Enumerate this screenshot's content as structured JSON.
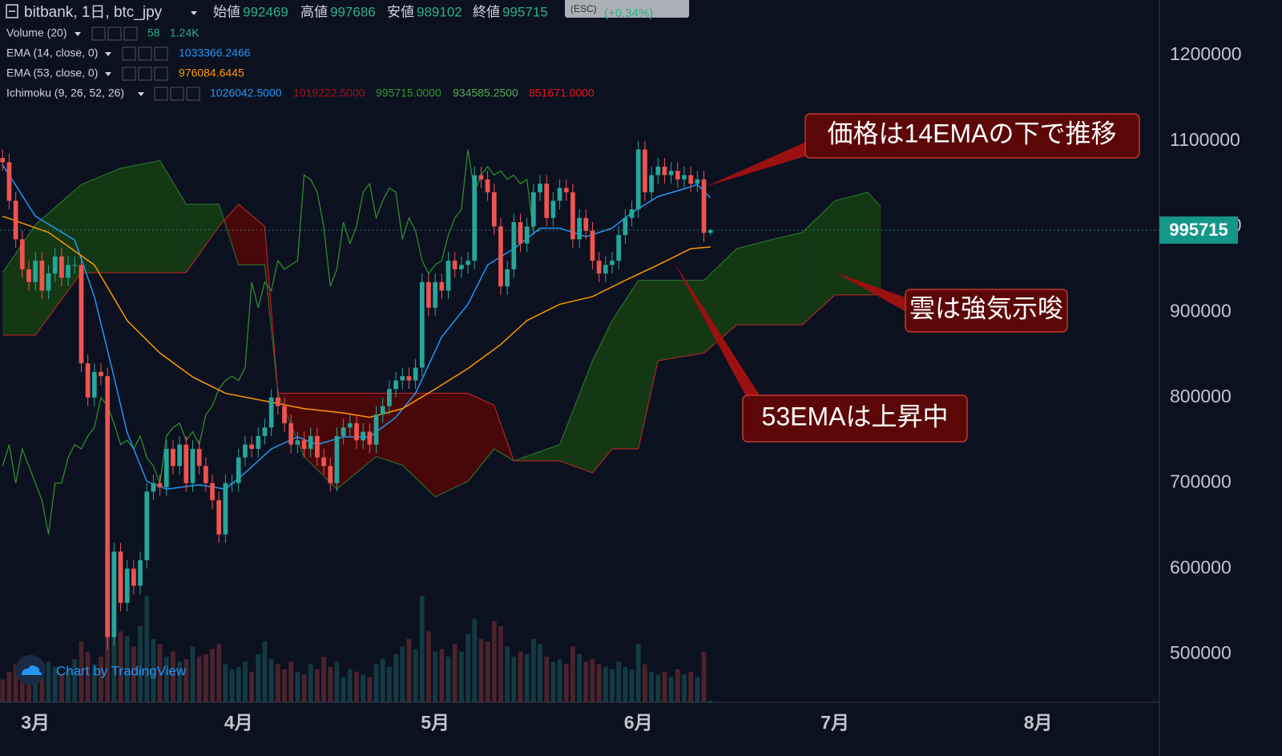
{
  "header": {
    "symbol": "bitbank, 1日, btc_jpy",
    "ohlc_labels": [
      "始値",
      "高値",
      "安値",
      "終値"
    ],
    "esc": "(ESC)",
    "change": "(+0.34%)"
  },
  "watermark": "Chart by TradingView",
  "annotations": [
    "価格は14EMAの下で推移",
    "雲は強気示唆",
    "53EMAは上昇中"
  ],
  "chart_data": {
    "type": "candlestick",
    "xlim": [
      -5.4,
      171.5
    ],
    "ylim": [
      443800,
      1264700
    ],
    "xticks": [
      {
        "value": 0,
        "label": "3月"
      },
      {
        "value": 31,
        "label": "4月"
      },
      {
        "value": 61,
        "label": "5月"
      },
      {
        "value": 92,
        "label": "6月"
      },
      {
        "value": 122,
        "label": "7月"
      },
      {
        "value": 153,
        "label": "8月"
      }
    ],
    "yticks": [
      500000,
      600000,
      700000,
      800000,
      900000,
      1000000,
      1100000,
      1200000
    ],
    "up_color": "#26a69a",
    "down_color": "#ef5350",
    "candles": {
      "x": [
        -5,
        -4,
        -3,
        -2,
        -1,
        0,
        1,
        2,
        3,
        4,
        5,
        6,
        7,
        8,
        9,
        10,
        11,
        12,
        13,
        14,
        15,
        16,
        17,
        18,
        19,
        20,
        21,
        22,
        23,
        24,
        25,
        26,
        27,
        28,
        29,
        30,
        31,
        32,
        33,
        34,
        35,
        36,
        37,
        38,
        39,
        40,
        41,
        42,
        43,
        44,
        45,
        46,
        47,
        48,
        49,
        50,
        51,
        52,
        53,
        54,
        55,
        56,
        57,
        58,
        59,
        60,
        61,
        62,
        63,
        64,
        65,
        66,
        67,
        68,
        69,
        70,
        71,
        72,
        73,
        74,
        75,
        76,
        77,
        78,
        79,
        80,
        81,
        82,
        83,
        84,
        85,
        86,
        87,
        88,
        89,
        90,
        91,
        92,
        93,
        94,
        95,
        96,
        97,
        98,
        99,
        100,
        101,
        102,
        103
      ],
      "open": [
        1080000,
        1075000,
        1030000,
        985000,
        950000,
        935000,
        960000,
        925000,
        945000,
        965000,
        940000,
        955000,
        955000,
        840000,
        800000,
        830000,
        825000,
        520000,
        620000,
        560000,
        600000,
        580000,
        610000,
        690000,
        700000,
        695000,
        740000,
        720000,
        745000,
        700000,
        740000,
        720000,
        700000,
        680000,
        640000,
        700000,
        700000,
        730000,
        745000,
        740000,
        755000,
        765000,
        800000,
        790000,
        770000,
        745000,
        750000,
        740000,
        755000,
        730000,
        720000,
        700000,
        755000,
        765000,
        770000,
        750000,
        760000,
        745000,
        780000,
        790000,
        810000,
        820000,
        825000,
        820000,
        835000,
        935000,
        905000,
        935000,
        925000,
        960000,
        950000,
        955000,
        960000,
        1060000,
        1055000,
        1040000,
        1000000,
        930000,
        950000,
        1005000,
        980000,
        1000000,
        1040000,
        1050000,
        1010000,
        1030000,
        1045000,
        1040000,
        985000,
        1010000,
        995000,
        960000,
        945000,
        955000,
        960000,
        990000,
        1010000,
        1020000,
        1090000,
        1040000,
        1060000,
        1070000,
        1060000,
        1065000,
        1055000,
        1060000,
        1050000,
        1055000,
        992469
      ],
      "high": [
        1090000,
        1085000,
        1040000,
        995000,
        960000,
        970000,
        970000,
        955000,
        975000,
        975000,
        965000,
        965000,
        965000,
        850000,
        840000,
        840000,
        835000,
        630000,
        630000,
        610000,
        610000,
        620000,
        700000,
        710000,
        710000,
        750000,
        750000,
        755000,
        755000,
        750000,
        750000,
        730000,
        710000,
        690000,
        710000,
        710000,
        740000,
        755000,
        755000,
        765000,
        775000,
        810000,
        810000,
        800000,
        780000,
        760000,
        760000,
        765000,
        765000,
        740000,
        730000,
        765000,
        775000,
        780000,
        780000,
        770000,
        770000,
        790000,
        800000,
        820000,
        830000,
        835000,
        835000,
        845000,
        945000,
        945000,
        945000,
        945000,
        970000,
        970000,
        965000,
        970000,
        1070000,
        1070000,
        1065000,
        1050000,
        1010000,
        960000,
        1015000,
        1015000,
        1010000,
        1050000,
        1060000,
        1060000,
        1040000,
        1055000,
        1055000,
        1050000,
        1020000,
        1020000,
        1005000,
        970000,
        965000,
        970000,
        1000000,
        1020000,
        1030000,
        1100000,
        1100000,
        1070000,
        1080000,
        1080000,
        1075000,
        1075000,
        1070000,
        1070000,
        1065000,
        1065000,
        997686
      ],
      "low": [
        1065000,
        1020000,
        975000,
        940000,
        925000,
        925000,
        915000,
        915000,
        935000,
        930000,
        930000,
        945000,
        830000,
        790000,
        790000,
        815000,
        505000,
        510000,
        550000,
        550000,
        570000,
        570000,
        600000,
        680000,
        685000,
        685000,
        710000,
        710000,
        690000,
        690000,
        710000,
        690000,
        670000,
        630000,
        630000,
        690000,
        690000,
        720000,
        730000,
        730000,
        745000,
        755000,
        780000,
        760000,
        735000,
        735000,
        730000,
        730000,
        720000,
        710000,
        690000,
        690000,
        745000,
        755000,
        740000,
        740000,
        735000,
        735000,
        770000,
        780000,
        800000,
        810000,
        810000,
        810000,
        825000,
        895000,
        895000,
        915000,
        915000,
        940000,
        940000,
        945000,
        950000,
        1045000,
        1030000,
        990000,
        920000,
        920000,
        940000,
        970000,
        970000,
        990000,
        1030000,
        1000000,
        1000000,
        1020000,
        1030000,
        975000,
        975000,
        985000,
        950000,
        935000,
        935000,
        945000,
        950000,
        980000,
        1000000,
        1010000,
        1030000,
        1030000,
        1050000,
        1050000,
        1050000,
        1045000,
        1045000,
        1040000,
        1040000,
        982000,
        989102
      ],
      "close": [
        1075000,
        1030000,
        985000,
        950000,
        935000,
        960000,
        925000,
        945000,
        965000,
        940000,
        955000,
        955000,
        840000,
        800000,
        830000,
        825000,
        520000,
        620000,
        560000,
        600000,
        580000,
        610000,
        690000,
        700000,
        695000,
        740000,
        720000,
        745000,
        700000,
        740000,
        720000,
        700000,
        680000,
        640000,
        700000,
        700000,
        730000,
        745000,
        740000,
        755000,
        765000,
        800000,
        790000,
        770000,
        745000,
        750000,
        740000,
        755000,
        730000,
        720000,
        700000,
        755000,
        765000,
        770000,
        750000,
        760000,
        745000,
        780000,
        790000,
        810000,
        820000,
        825000,
        820000,
        835000,
        935000,
        905000,
        935000,
        925000,
        960000,
        950000,
        955000,
        960000,
        1060000,
        1055000,
        1040000,
        1000000,
        930000,
        950000,
        1005000,
        980000,
        1000000,
        1040000,
        1050000,
        1010000,
        1030000,
        1045000,
        1040000,
        985000,
        1010000,
        995000,
        960000,
        945000,
        955000,
        960000,
        990000,
        1010000,
        1020000,
        1090000,
        1040000,
        1060000,
        1070000,
        1060000,
        1065000,
        1055000,
        1060000,
        1050000,
        1055000,
        992469,
        995715
      ]
    },
    "volume": {
      "name": "Volume (20)",
      "ma_label": "1.24K",
      "ylim": [
        0,
        4300
      ],
      "values": [
        900,
        1200,
        1500,
        1100,
        1300,
        1000,
        1200,
        1600,
        1400,
        1100,
        1300,
        1700,
        2400,
        2000,
        1500,
        1800,
        3800,
        3500,
        2800,
        2600,
        2200,
        3000,
        4200,
        2500,
        2300,
        1800,
        2000,
        1600,
        1700,
        2200,
        1800,
        1900,
        2100,
        2300,
        1500,
        1300,
        1400,
        1600,
        1200,
        1900,
        2400,
        1700,
        1500,
        1300,
        1600,
        1200,
        1100,
        1500,
        1300,
        1800,
        1400,
        1600,
        1000,
        1300,
        1200,
        1100,
        1000,
        1500,
        1700,
        1400,
        1900,
        2200,
        2500,
        2100,
        4200,
        2800,
        2000,
        2100,
        1800,
        2300,
        2000,
        2700,
        3300,
        2500,
        2400,
        3200,
        3000,
        2200,
        1800,
        2000,
        1900,
        2500,
        2300,
        1800,
        1600,
        1700,
        1500,
        2200,
        1900,
        1600,
        1700,
        1500,
        1400,
        1300,
        1600,
        1400,
        1300,
        2300,
        1500,
        1200,
        1100,
        1200,
        1000,
        1300,
        1100,
        1200,
        1000,
        2000,
        58
      ]
    },
    "series": [
      {
        "name": "EMA (14, close, 0)",
        "color": "#2196f3",
        "last_label": "1033366.2466",
        "x": [
          -5,
          0,
          6,
          9,
          12,
          14,
          17,
          20,
          25,
          29,
          32,
          36,
          40,
          43,
          47,
          51,
          55,
          58,
          62,
          66,
          69,
          73,
          77,
          80,
          84,
          88,
          91,
          95,
          99,
          101,
          103
        ],
        "values": [
          1072000,
          1012000,
          984000,
          918000,
          824000,
          759000,
          702000,
          693000,
          698000,
          693000,
          712000,
          740000,
          754000,
          745000,
          754000,
          754000,
          777000,
          805000,
          871000,
          909000,
          955000,
          974000,
          998000,
          998000,
          988000,
          998000,
          1016000,
          1035000,
          1044000,
          1049000,
          1033366
        ]
      },
      {
        "name": "EMA (53, close, 0)",
        "color": "#ff9800",
        "last_label": "976084.6445",
        "x": [
          -5,
          2,
          9,
          14,
          19,
          24,
          29,
          35,
          41,
          47,
          51,
          56,
          61,
          66,
          71,
          75,
          80,
          85,
          90,
          95,
          100,
          103
        ],
        "values": [
          1012000,
          993000,
          955000,
          890000,
          852000,
          824000,
          805000,
          796000,
          787000,
          782000,
          777000,
          787000,
          810000,
          834000,
          862000,
          890000,
          909000,
          918000,
          937000,
          955000,
          974000,
          976085
        ]
      }
    ],
    "ichimoku": {
      "name": "Ichimoku (9, 26, 52, 26)",
      "value_labels": [
        "1026042.5000",
        "1019222.5000",
        "995715.0000",
        "934585.2500",
        "851671.0000"
      ],
      "colors": [
        "#2196f3",
        "#a11414",
        "#2e9a2e",
        "#4caf50",
        "#e8141e"
      ],
      "lagging": {
        "color": "#2e8b2e",
        "x": [
          -5,
          -4,
          -3,
          -2,
          -1,
          0,
          1,
          2,
          3,
          4,
          5,
          6,
          7,
          8,
          9,
          10,
          11,
          12,
          13,
          14,
          15,
          16,
          17,
          18,
          19,
          20,
          21,
          22,
          23,
          24,
          25,
          26,
          27,
          28,
          29,
          30,
          31,
          32,
          33,
          34,
          35,
          36,
          37,
          38,
          39,
          40,
          41,
          42,
          43,
          44,
          45,
          46,
          47,
          48,
          49,
          50,
          51,
          52,
          53,
          54,
          55,
          56,
          57,
          58,
          59,
          60,
          61,
          62,
          63,
          64,
          65,
          66,
          67,
          68,
          69,
          70,
          71,
          72,
          73,
          74,
          75,
          76,
          77
        ],
        "values": [
          720000,
          745000,
          700000,
          740000,
          720000,
          700000,
          680000,
          640000,
          700000,
          700000,
          730000,
          745000,
          740000,
          755000,
          765000,
          800000,
          790000,
          770000,
          745000,
          750000,
          740000,
          755000,
          730000,
          720000,
          700000,
          755000,
          765000,
          770000,
          750000,
          760000,
          745000,
          780000,
          790000,
          810000,
          820000,
          825000,
          820000,
          835000,
          935000,
          905000,
          935000,
          925000,
          960000,
          950000,
          955000,
          960000,
          1060000,
          1055000,
          1040000,
          1000000,
          930000,
          950000,
          1005000,
          980000,
          1000000,
          1040000,
          1050000,
          1010000,
          1030000,
          1045000,
          1040000,
          985000,
          1010000,
          995000,
          960000,
          945000,
          955000,
          960000,
          990000,
          1010000,
          1020000,
          1090000,
          1040000,
          1060000,
          1070000,
          1060000,
          1065000,
          1055000,
          1060000,
          1050000,
          1055000,
          992469,
          995715
        ]
      },
      "cloud": {
        "span_a_color": "#2e7d32",
        "span_b_color": "#c62828",
        "up_fill": "#153d12",
        "down_fill": "#4f0808",
        "x": [
          -5,
          0,
          7,
          13,
          19,
          23,
          28,
          31,
          35,
          37,
          41,
          46,
          52,
          56,
          61,
          66,
          70,
          73,
          80,
          85,
          88,
          92,
          95,
          102,
          107,
          112,
          117,
          122,
          127,
          129
        ],
        "span_a": [
          946000,
          1002000,
          1049000,
          1068000,
          1077000,
          1026000,
          1026000,
          955000,
          955000,
          805000,
          731000,
          693000,
          731000,
          721000,
          684000,
          702000,
          740000,
          726000,
          745000,
          843000,
          890000,
          937000,
          937000,
          937000,
          974000,
          984000,
          993000,
          1030000,
          1040000,
          1023000
        ],
        "span_b": [
          873000,
          873000,
          946000,
          946000,
          946000,
          946000,
          1000000,
          1026000,
          1000000,
          805000,
          805000,
          805000,
          805000,
          805000,
          805000,
          805000,
          791000,
          726000,
          726000,
          712000,
          740000,
          740000,
          843000,
          852000,
          885000,
          885000,
          885000,
          920000,
          920000,
          920000
        ]
      }
    }
  }
}
